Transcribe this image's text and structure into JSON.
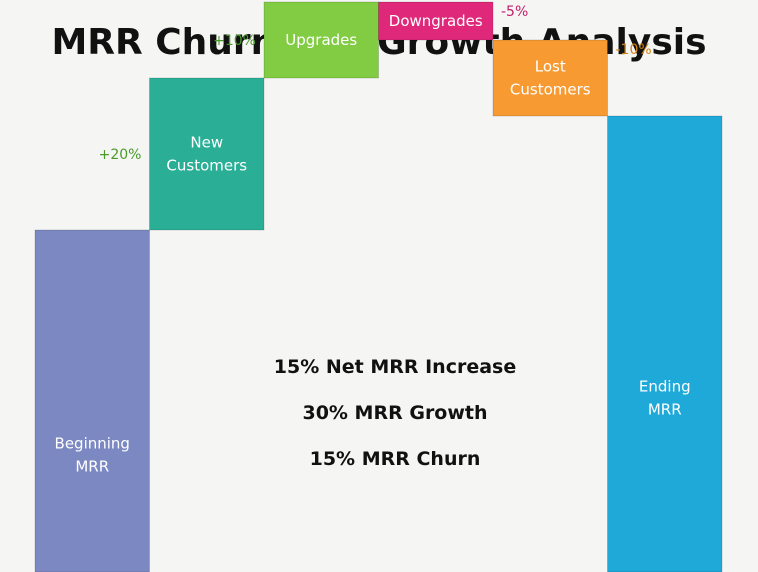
{
  "chart_data": {
    "type": "waterfall",
    "title": "MRR Churn and Growth Analysis",
    "baseline": 100,
    "ylim": [
      0,
      165
    ],
    "steps": [
      {
        "label": [
          "Beginning",
          "MRR"
        ],
        "kind": "total",
        "value": 100,
        "color": "#7b88c2"
      },
      {
        "label": [
          "New",
          "Customers"
        ],
        "kind": "delta",
        "value": 20,
        "pct_label": "+20%",
        "color": "#2aaf96",
        "pct_color": "#4a9a2a"
      },
      {
        "label": [
          "Upgrades"
        ],
        "kind": "delta",
        "value": 10,
        "pct_label": "+10%",
        "color": "#82cc44",
        "pct_color": "#4a9a2a"
      },
      {
        "label": [
          "Downgrades"
        ],
        "kind": "delta",
        "value": -5,
        "pct_label": "-5%",
        "color": "#e0287a",
        "pct_color": "#c01f6a"
      },
      {
        "label": [
          "Lost",
          "Customers"
        ],
        "kind": "delta",
        "value": -10,
        "pct_label": "-10%",
        "color": "#f79a32",
        "pct_color": "#d4850f"
      },
      {
        "label": [
          "Ending",
          "MRR"
        ],
        "kind": "total",
        "value": 115,
        "color": "#1fa9d9"
      }
    ]
  },
  "summary": {
    "line1": "15% Net MRR Increase",
    "line2": "30% MRR Growth",
    "line3": "15% MRR Churn"
  }
}
